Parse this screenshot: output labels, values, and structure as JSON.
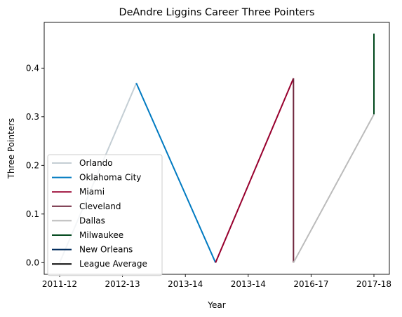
{
  "chart_data": {
    "type": "line",
    "title": "DeAndre Liggins Career Three Pointers",
    "xlabel": "Year",
    "ylabel": "Three Pointers",
    "x_tick_labels": [
      "2011-12",
      "2012-13",
      "2013-14",
      "2013-14",
      "2016-17",
      "2017-18"
    ],
    "ylim": [
      -0.024,
      0.494
    ],
    "y_ticks": [
      0.0,
      0.1,
      0.2,
      0.3,
      0.4
    ],
    "y_tick_labels": [
      "0.0",
      "0.1",
      "0.2",
      "0.3",
      "0.4"
    ],
    "grid": false,
    "legend_position": "lower-left",
    "series": [
      {
        "name": "Orlando",
        "color": "#c4ced4",
        "points": [
          [
            0.0,
            0.0
          ],
          [
            1.22,
            0.369
          ]
        ]
      },
      {
        "name": "Oklahoma City",
        "color": "#007ac1",
        "points": [
          [
            1.22,
            0.369
          ],
          [
            2.48,
            0.0
          ]
        ]
      },
      {
        "name": "Miami",
        "color": "#98002e",
        "points": [
          [
            2.48,
            0.0
          ],
          [
            3.72,
            0.379
          ]
        ]
      },
      {
        "name": "Cleveland",
        "color": "#6f263d",
        "points": [
          [
            3.72,
            0.379
          ],
          [
            3.72,
            0.0
          ]
        ]
      },
      {
        "name": "Dallas",
        "color": "#bbbbbb",
        "points": [
          [
            3.72,
            0.0
          ],
          [
            5.0,
            0.305
          ]
        ]
      },
      {
        "name": "Milwaukee",
        "color": "#00471b",
        "points": [
          [
            5.0,
            0.305
          ],
          [
            5.0,
            0.471
          ]
        ]
      },
      {
        "name": "New Orleans",
        "color": "#002b5c",
        "points": []
      },
      {
        "name": "League Average",
        "color": "#000000",
        "points": []
      }
    ]
  }
}
